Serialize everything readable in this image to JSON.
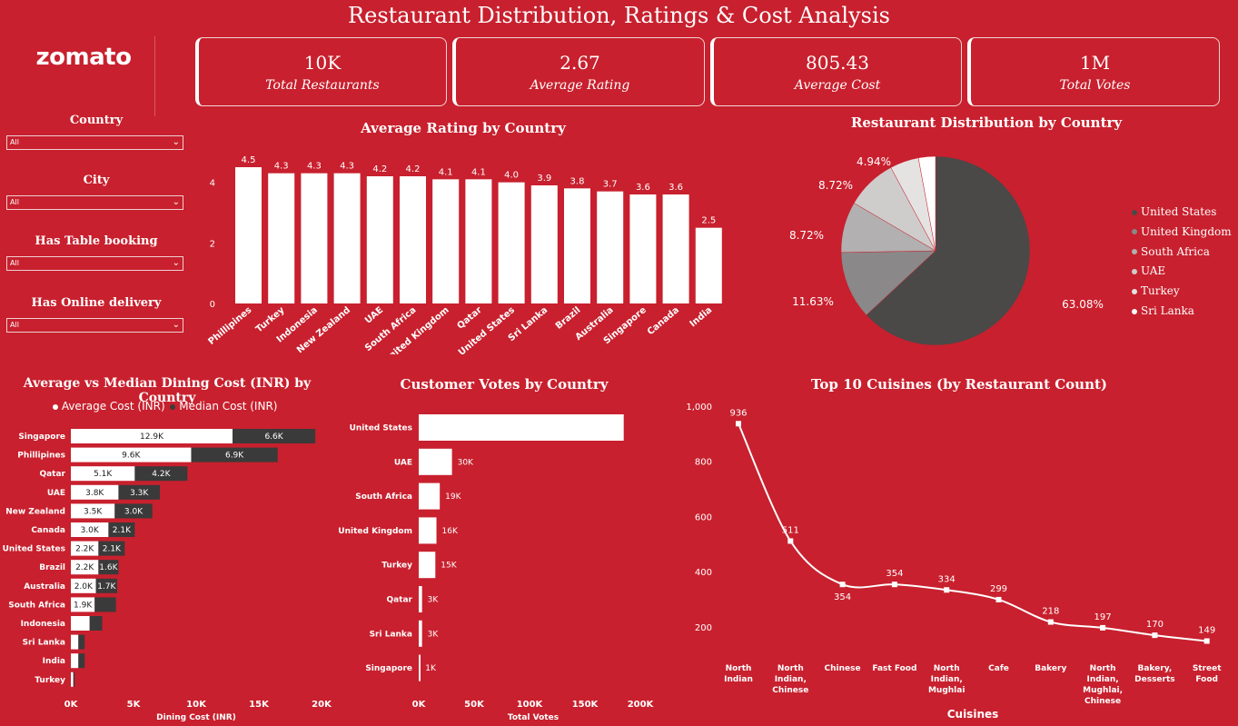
{
  "title": "Restaurant Distribution, Ratings & Cost Analysis",
  "logo": "zomato",
  "kpis": [
    {
      "value": "10K",
      "label": "Total Restaurants"
    },
    {
      "value": "2.67",
      "label": "Average Rating"
    },
    {
      "value": "805.43",
      "label": "Average Cost"
    },
    {
      "value": "1M",
      "label": "Total Votes"
    }
  ],
  "filters": [
    {
      "label": "Country",
      "value": "All"
    },
    {
      "label": "City",
      "value": "All"
    },
    {
      "label": "Has Table booking",
      "value": "All"
    },
    {
      "label": "Has Online delivery",
      "value": "All"
    }
  ],
  "chart_data": [
    {
      "type": "bar",
      "title": "Average Rating by Country",
      "categories": [
        "Phillipines",
        "Turkey",
        "Indonesia",
        "New Zealand",
        "UAE",
        "South Africa",
        "United Kingdom",
        "Qatar",
        "United States",
        "Sri Lanka",
        "Brazil",
        "Australia",
        "Singapore",
        "Canada",
        "India"
      ],
      "values": [
        4.5,
        4.3,
        4.3,
        4.3,
        4.2,
        4.2,
        4.1,
        4.1,
        4.0,
        3.9,
        3.8,
        3.7,
        3.6,
        3.6,
        2.5
      ],
      "yticks": [
        0,
        2,
        4
      ],
      "ylim": [
        0,
        4.8
      ]
    },
    {
      "type": "pie",
      "title": "Restaurant Distribution by Country",
      "labels": [
        "United States",
        "United Kingdom",
        "South Africa",
        "UAE",
        "Turkey",
        "Sri Lanka"
      ],
      "values": [
        63.08,
        11.63,
        8.72,
        8.72,
        4.94,
        2.91
      ],
      "value_labels": [
        "63.08%",
        "11.63%",
        "8.72%",
        "8.72%",
        "4.94%",
        ""
      ],
      "colors": [
        "#4b4848",
        "#8a8888",
        "#b2b0b0",
        "#cfcccc",
        "#e5e2e2",
        "#ffffff"
      ]
    },
    {
      "type": "bar",
      "orientation": "horizontal",
      "stacked": true,
      "title": "Average vs Median Dining Cost (INR) by Country",
      "xlabel": "Dining Cost (INR)",
      "categories": [
        "Singapore",
        "Phillipines",
        "Qatar",
        "UAE",
        "New Zealand",
        "Canada",
        "United States",
        "Brazil",
        "Australia",
        "South Africa",
        "Indonesia",
        "Sri Lanka",
        "India",
        "Turkey"
      ],
      "series": [
        {
          "name": "Average Cost (INR)",
          "values": [
            12900,
            9600,
            5100,
            3800,
            3500,
            3000,
            2200,
            2200,
            2000,
            1900,
            1500,
            600,
            600,
            200
          ],
          "labels": [
            "12.9K",
            "9.6K",
            "5.1K",
            "3.8K",
            "3.5K",
            "3.0K",
            "2.2K",
            "2.2K",
            "2.0K",
            "1.9K",
            "",
            "",
            "",
            ""
          ],
          "color": "#ffffff"
        },
        {
          "name": "Median Cost (INR)",
          "values": [
            6600,
            6900,
            4200,
            3300,
            3000,
            2100,
            2100,
            1600,
            1700,
            1700,
            1000,
            500,
            500,
            100
          ],
          "labels": [
            "6.6K",
            "6.9K",
            "4.2K",
            "3.3K",
            "3.0K",
            "2.1K",
            "2.1K",
            "1.6K",
            "1.7K",
            "",
            "",
            "",
            "",
            ""
          ],
          "color": "#3a3a3a"
        }
      ],
      "xticks": [
        0,
        5000,
        10000,
        15000,
        20000
      ],
      "xtick_labels": [
        "0K",
        "5K",
        "10K",
        "15K",
        "20K"
      ],
      "xlim": [
        0,
        20000
      ]
    },
    {
      "type": "bar",
      "orientation": "horizontal",
      "title": "Customer Votes by Country",
      "xlabel": "Total Votes",
      "categories": [
        "United States",
        "UAE",
        "South Africa",
        "United Kingdom",
        "Turkey",
        "Qatar",
        "Sri Lanka",
        "Singapore"
      ],
      "values": [
        185000,
        30000,
        19000,
        16000,
        15000,
        3000,
        3000,
        1000
      ],
      "value_labels": [
        "",
        "30K",
        "19K",
        "16K",
        "15K",
        "3K",
        "3K",
        "1K"
      ],
      "xticks": [
        0,
        50000,
        100000,
        150000,
        200000
      ],
      "xtick_labels": [
        "0K",
        "50K",
        "100K",
        "150K",
        "200K"
      ],
      "xlim": [
        0,
        200000
      ]
    },
    {
      "type": "line",
      "title": "Top 10 Cuisines (by Restaurant Count)",
      "xlabel": "Cuisines",
      "categories": [
        [
          "North",
          "Indian"
        ],
        [
          "North",
          "Indian,",
          "Chinese"
        ],
        [
          "Chinese"
        ],
        [
          "Fast Food"
        ],
        [
          "North",
          "Indian,",
          "Mughlai"
        ],
        [
          "Cafe"
        ],
        [
          "Bakery"
        ],
        [
          "North",
          "Indian,",
          "Mughlai,",
          "Chinese"
        ],
        [
          "Bakery,",
          "Desserts"
        ],
        [
          "Street",
          "Food"
        ]
      ],
      "values": [
        936,
        511,
        354,
        354,
        334,
        299,
        218,
        197,
        170,
        149
      ],
      "yticks": [
        200,
        400,
        600,
        800,
        1000
      ],
      "ytick_labels": [
        "200",
        "400",
        "600",
        "800",
        "1,000"
      ],
      "ylim": [
        110,
        1000
      ]
    }
  ]
}
